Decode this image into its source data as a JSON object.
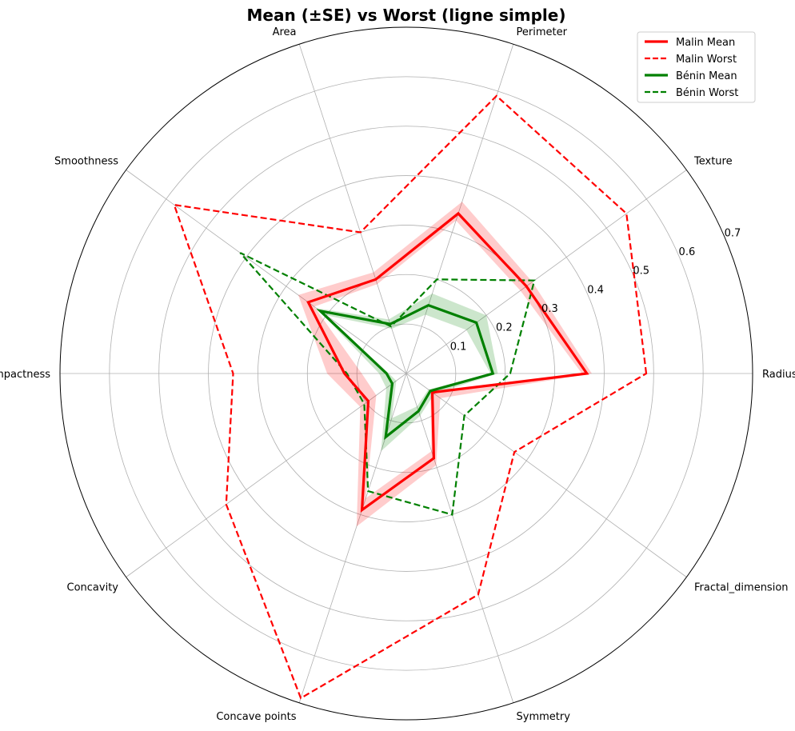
{
  "chart_data": {
    "type": "radar",
    "title": "Mean (±SE) vs Worst (ligne simple)",
    "axes": [
      "Radius",
      "Texture",
      "Perimeter",
      "Area",
      "Smoothness",
      "Compactness",
      "Concavity",
      "Concave points",
      "Symmetry",
      "Fractal_dimension"
    ],
    "rlim": [
      0,
      0.7
    ],
    "rticks": [
      0.1,
      0.2,
      0.3,
      0.4,
      0.5,
      0.6,
      0.7
    ],
    "rtick_labels": [
      "0.1",
      "0.2",
      "0.3",
      "0.4",
      "0.5",
      "0.6",
      "0.7"
    ],
    "grid": true,
    "legend_position": "top-right",
    "series": [
      {
        "name": "Malin Mean",
        "style": "solid",
        "color": "#ff0000",
        "values": [
          0.365,
          0.3,
          0.34,
          0.2,
          0.245,
          0.125,
          0.095,
          0.29,
          0.18,
          0.065
        ],
        "se_lower": [
          0.355,
          0.285,
          0.325,
          0.19,
          0.23,
          0.09,
          0.075,
          0.265,
          0.165,
          0.06
        ],
        "se_upper": [
          0.375,
          0.315,
          0.365,
          0.215,
          0.27,
          0.16,
          0.115,
          0.325,
          0.195,
          0.085
        ]
      },
      {
        "name": "Malin Worst",
        "style": "dashed",
        "color": "#ff0000",
        "values": [
          0.485,
          0.55,
          0.59,
          0.3,
          0.58,
          0.35,
          0.45,
          0.69,
          0.47,
          0.27
        ]
      },
      {
        "name": "Bénin Mean",
        "style": "solid",
        "color": "#008000",
        "values": [
          0.175,
          0.175,
          0.145,
          0.105,
          0.215,
          0.04,
          0.035,
          0.135,
          0.08,
          0.06
        ],
        "se_lower": [
          0.17,
          0.15,
          0.125,
          0.095,
          0.2,
          0.035,
          0.025,
          0.095,
          0.07,
          0.055
        ],
        "se_upper": [
          0.185,
          0.2,
          0.17,
          0.115,
          0.225,
          0.055,
          0.05,
          0.165,
          0.09,
          0.07
        ]
      },
      {
        "name": "Bénin Worst",
        "style": "dashed",
        "color": "#008000",
        "values": [
          0.21,
          0.32,
          0.2,
          0.1,
          0.415,
          0.12,
          0.105,
          0.25,
          0.3,
          0.145
        ]
      }
    ]
  }
}
